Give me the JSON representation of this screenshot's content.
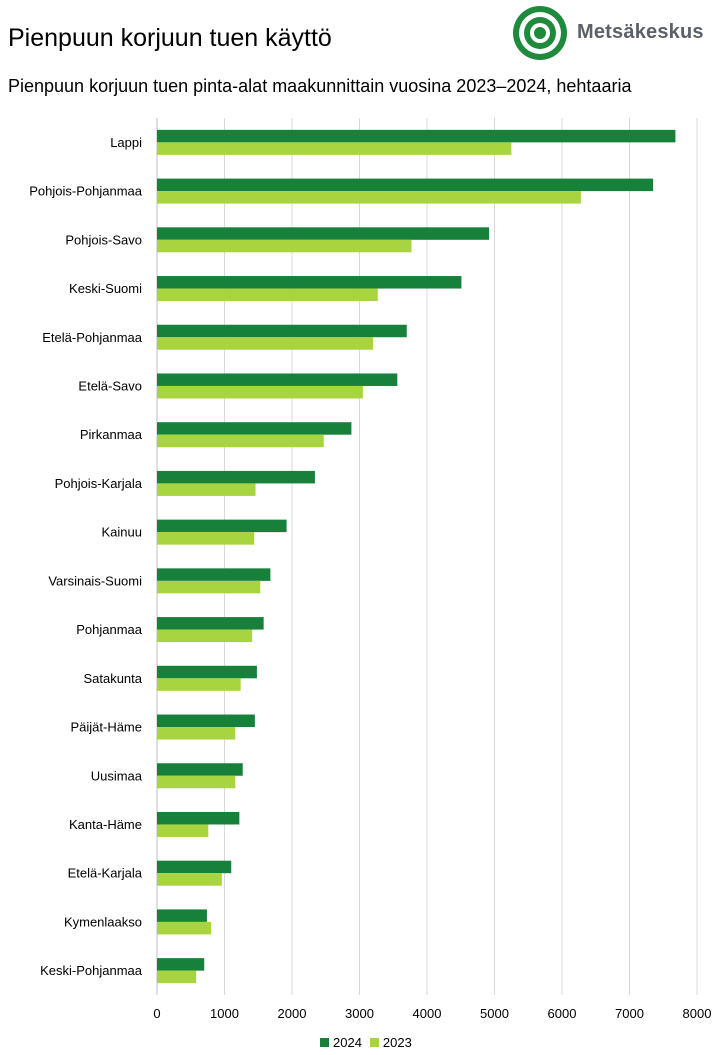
{
  "header": {
    "title": "Pienpuun korjuun tuen käyttö",
    "subtitle": "Pienpuun korjuun tuen pinta-alat maakunnittain vuosina 2023–2024, hehtaaria"
  },
  "logo": {
    "text": "Metsäkeskus",
    "color": "#1f8a3c"
  },
  "chart_data": {
    "type": "bar",
    "orientation": "horizontal",
    "categories": [
      "Lappi",
      "Pohjois-Pohjanmaa",
      "Pohjois-Savo",
      "Keski-Suomi",
      "Etelä-Pohjanmaa",
      "Etelä-Savo",
      "Pirkanmaa",
      "Pohjois-Karjala",
      "Kainuu",
      "Varsinais-Suomi",
      "Pohjanmaa",
      "Satakunta",
      "Päijät-Häme",
      "Uusimaa",
      "Kanta-Häme",
      "Etelä-Karjala",
      "Kymenlaakso",
      "Keski-Pohjanmaa"
    ],
    "series": [
      {
        "name": "2024",
        "color": "#17813b",
        "values": [
          7680,
          7350,
          4920,
          4510,
          3700,
          3560,
          2880,
          2340,
          1920,
          1680,
          1580,
          1480,
          1450,
          1270,
          1220,
          1100,
          740,
          700
        ]
      },
      {
        "name": "2023",
        "color": "#a8d43f",
        "values": [
          5250,
          6280,
          3770,
          3270,
          3200,
          3050,
          2470,
          1460,
          1440,
          1530,
          1410,
          1240,
          1160,
          1160,
          760,
          960,
          800,
          580
        ]
      }
    ],
    "xlim": [
      0,
      8000
    ],
    "xticks": [
      "0",
      "1000",
      "2000",
      "3000",
      "4000",
      "5000",
      "6000",
      "7000",
      "8000"
    ],
    "grid": true,
    "legend_position": "bottom"
  }
}
